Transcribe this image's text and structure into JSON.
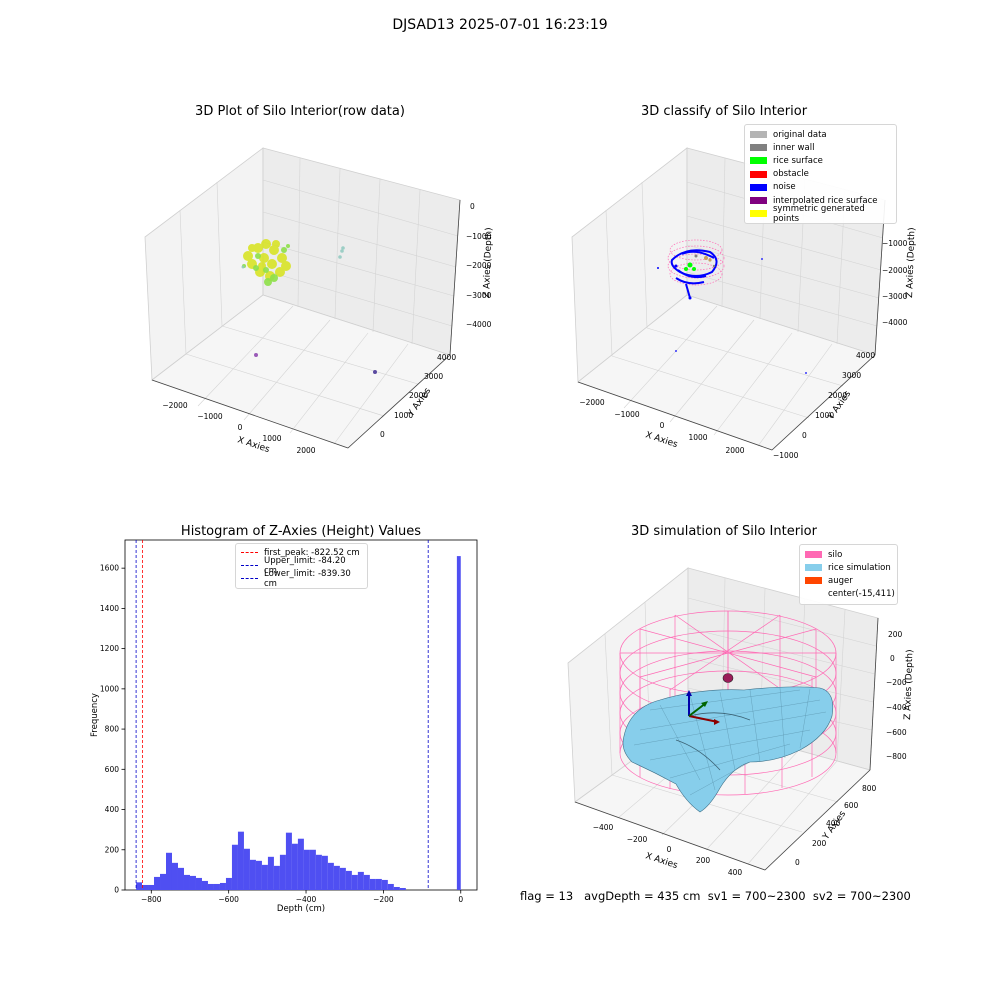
{
  "suptitle": "DJSAD13 2025-07-01 16:23:19",
  "footer": "flag = 13   avgDepth = 435 cm  sv1 = 700~2300  sv2 = 700~2300",
  "colors": {
    "hist_bar": "#4f4ff2",
    "first_peak": "#ff0000",
    "limits": "#0000c8",
    "silo": "#ff69b4",
    "rice_sim": "#87ceeb",
    "auger": "#ff4500",
    "noise": "#0000ff"
  },
  "chart_data": [
    {
      "type": "scatter",
      "title": "3D Plot of Silo Interior(row data)",
      "xlabel": "X Axies",
      "ylabel": "Y Axies",
      "zlabel": "Z Axies (Depth)",
      "x_ticks": [
        "−2000",
        "−1000",
        "0",
        "1000",
        "2000"
      ],
      "y_ticks": [
        "0",
        "1000",
        "2000",
        "3000",
        "4000"
      ],
      "z_ticks": [
        "0",
        "−1000",
        "−2000",
        "−3000",
        "−4000"
      ]
    },
    {
      "type": "scatter",
      "title": "3D classify of Silo Interior",
      "xlabel": "X Axies",
      "ylabel": "Y Axies",
      "zlabel": "Z Axies (Depth)",
      "x_ticks": [
        "−2000",
        "−1000",
        "0",
        "1000",
        "2000"
      ],
      "y_ticks": [
        "−1000",
        "0",
        "1000",
        "2000",
        "3000",
        "4000"
      ],
      "z_ticks": [
        "−1000",
        "−2000",
        "−3000",
        "−4000"
      ],
      "legend": [
        {
          "label": "original data",
          "color": "#b4b4b4"
        },
        {
          "label": "inner wall",
          "color": "#808080"
        },
        {
          "label": "rice surface",
          "color": "#00ff00"
        },
        {
          "label": "obstacle",
          "color": "#ff0000"
        },
        {
          "label": "noise",
          "color": "#0000ff"
        },
        {
          "label": "interpolated rice surface",
          "color": "#800080"
        },
        {
          "label": "symmetric generated points",
          "color": "#ffff00"
        }
      ]
    },
    {
      "type": "bar",
      "title": "Histogram of Z-Axies (Height) Values",
      "xlabel": "Depth (cm)",
      "ylabel": "Frequency",
      "xlim": [
        -868,
        42
      ],
      "ylim": [
        0,
        1740
      ],
      "x_ticks": [
        -800,
        -600,
        -400,
        -200,
        0
      ],
      "x_tick_labels": [
        "−800",
        "−600",
        "−400",
        "−200",
        "0"
      ],
      "y_ticks": [
        0,
        200,
        400,
        600,
        800,
        1000,
        1200,
        1400,
        1600
      ],
      "y_tick_labels": [
        "0",
        "200",
        "400",
        "600",
        "800",
        "1000",
        "1200",
        "1400",
        "1600"
      ],
      "bins": [
        {
          "x0": -839.3,
          "x1": -824,
          "value": 38
        },
        {
          "x0": -824,
          "x1": -808.5,
          "value": 25
        },
        {
          "x0": -808.5,
          "x1": -793,
          "value": 25
        },
        {
          "x0": -793,
          "x1": -777.5,
          "value": 65
        },
        {
          "x0": -777.5,
          "x1": -762,
          "value": 80
        },
        {
          "x0": -762,
          "x1": -746.5,
          "value": 185
        },
        {
          "x0": -746.5,
          "x1": -731,
          "value": 135
        },
        {
          "x0": -731,
          "x1": -715.5,
          "value": 110
        },
        {
          "x0": -715.5,
          "x1": -700,
          "value": 75
        },
        {
          "x0": -700,
          "x1": -684.5,
          "value": 70
        },
        {
          "x0": -684.5,
          "x1": -669,
          "value": 60
        },
        {
          "x0": -669,
          "x1": -653.5,
          "value": 45
        },
        {
          "x0": -653.5,
          "x1": -638,
          "value": 30
        },
        {
          "x0": -638,
          "x1": -622.5,
          "value": 30
        },
        {
          "x0": -622.5,
          "x1": -607,
          "value": 35
        },
        {
          "x0": -607,
          "x1": -591.5,
          "value": 60
        },
        {
          "x0": -591.5,
          "x1": -576,
          "value": 225
        },
        {
          "x0": -576,
          "x1": -560.5,
          "value": 290
        },
        {
          "x0": -560.5,
          "x1": -545,
          "value": 205
        },
        {
          "x0": -545,
          "x1": -529.5,
          "value": 150
        },
        {
          "x0": -529.5,
          "x1": -514,
          "value": 145
        },
        {
          "x0": -514,
          "x1": -498.5,
          "value": 125
        },
        {
          "x0": -498.5,
          "x1": -483,
          "value": 165
        },
        {
          "x0": -483,
          "x1": -467.5,
          "value": 120
        },
        {
          "x0": -467.5,
          "x1": -452,
          "value": 175
        },
        {
          "x0": -452,
          "x1": -436.5,
          "value": 285
        },
        {
          "x0": -436.5,
          "x1": -421,
          "value": 230
        },
        {
          "x0": -421,
          "x1": -405.5,
          "value": 255
        },
        {
          "x0": -405.5,
          "x1": -390,
          "value": 200
        },
        {
          "x0": -390,
          "x1": -374.5,
          "value": 200
        },
        {
          "x0": -374.5,
          "x1": -359,
          "value": 175
        },
        {
          "x0": -359,
          "x1": -343.5,
          "value": 170
        },
        {
          "x0": -343.5,
          "x1": -328,
          "value": 135
        },
        {
          "x0": -328,
          "x1": -312.5,
          "value": 120
        },
        {
          "x0": -312.5,
          "x1": -297,
          "value": 110
        },
        {
          "x0": -297,
          "x1": -281.5,
          "value": 95
        },
        {
          "x0": -281.5,
          "x1": -266,
          "value": 75
        },
        {
          "x0": -266,
          "x1": -250.5,
          "value": 90
        },
        {
          "x0": -250.5,
          "x1": -235,
          "value": 75
        },
        {
          "x0": -235,
          "x1": -219.5,
          "value": 55
        },
        {
          "x0": -219.5,
          "x1": -204,
          "value": 55
        },
        {
          "x0": -204,
          "x1": -188.5,
          "value": 50
        },
        {
          "x0": -188.5,
          "x1": -173,
          "value": 30
        },
        {
          "x0": -173,
          "x1": -157.5,
          "value": 15
        },
        {
          "x0": -157.5,
          "x1": -142,
          "value": 10
        },
        {
          "x0": -10,
          "x1": 0,
          "value": 1660
        }
      ],
      "vlines": [
        {
          "label": "first_peak: -822.52 cm",
          "x": -822.52,
          "color": "#ff0000"
        },
        {
          "label": "Upper_limit: -84.20 cm",
          "x": -84.2,
          "color": "#0000c8"
        },
        {
          "label": "Lower_limit: -839.30 cm",
          "x": -839.3,
          "color": "#0000c8"
        }
      ]
    },
    {
      "type": "surface",
      "title": "3D simulation of Silo Interior",
      "xlabel": "X Axies",
      "ylabel": "Y Axies",
      "zlabel": "Z Axies (Depth)",
      "x_ticks": [
        "−400",
        "−200",
        "0",
        "200",
        "400"
      ],
      "y_ticks": [
        "0",
        "200",
        "400",
        "600",
        "800"
      ],
      "z_ticks": [
        "200",
        "0",
        "−200",
        "−400",
        "−600",
        "−800"
      ],
      "legend": [
        {
          "label": "silo",
          "color": "#ff69b4"
        },
        {
          "label": "rice simulation",
          "color": "#87ceeb"
        },
        {
          "label": "auger",
          "color": "#ff4500"
        },
        {
          "label": "center(-15,411)",
          "color": ""
        }
      ]
    }
  ]
}
